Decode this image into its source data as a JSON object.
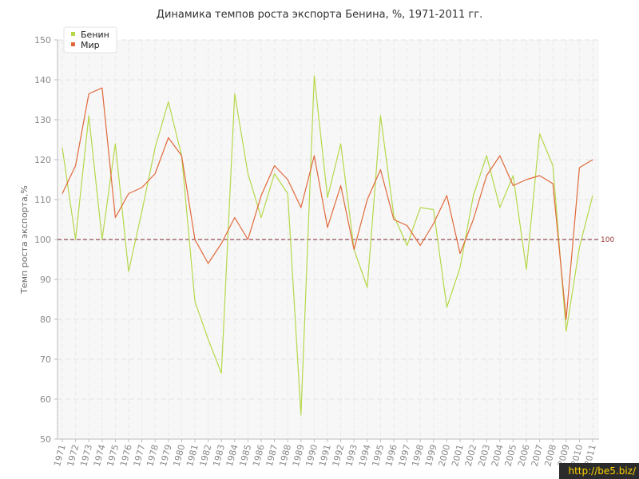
{
  "chart_data": {
    "type": "line",
    "title": "Динамика темпов роста экспорта Бенина, %, 1971-2011 гг.",
    "xlabel": "",
    "ylabel": "Темп роста экспорта,%",
    "ylim": [
      50,
      150
    ],
    "yticks": [
      50,
      60,
      70,
      80,
      90,
      100,
      110,
      120,
      130,
      140,
      150
    ],
    "reference_line": {
      "value": 100,
      "label": "100",
      "color": "#7a1f2b"
    },
    "grid": true,
    "legend_position": "top-left",
    "categories": [
      "1971",
      "1972",
      "1973",
      "1974",
      "1975",
      "1976",
      "1977",
      "1978",
      "1979",
      "1980",
      "1981",
      "1982",
      "1983",
      "1984",
      "1985",
      "1986",
      "1987",
      "1988",
      "1989",
      "1990",
      "1991",
      "1992",
      "1993",
      "1994",
      "1995",
      "1996",
      "1997",
      "1998",
      "1999",
      "2000",
      "2001",
      "2002",
      "2003",
      "2004",
      "2005",
      "2006",
      "2007",
      "2008",
      "2009",
      "2010",
      "2011"
    ],
    "series": [
      {
        "name": "Бенин",
        "color": "#b5d84a",
        "values": [
          123,
          100,
          131,
          100,
          124,
          92,
          107,
          123,
          134.5,
          121,
          84.5,
          75,
          66.5,
          136.5,
          116.5,
          105.5,
          116.5,
          111.5,
          56,
          141,
          110.5,
          124,
          97.5,
          88,
          131,
          106,
          98.5,
          108,
          107.5,
          83,
          93,
          111,
          121,
          108,
          116,
          92.5,
          126.5,
          118.5,
          77,
          98,
          111
        ]
      },
      {
        "name": "Мир",
        "color": "#e0693a",
        "values": [
          111.5,
          118.5,
          136.5,
          138,
          105.5,
          111.5,
          113,
          116.5,
          125.5,
          121,
          100,
          94,
          99,
          105.5,
          100,
          111,
          118.5,
          115,
          108,
          121,
          103,
          113.5,
          97.5,
          110,
          117.5,
          105,
          103.5,
          98.5,
          104,
          111,
          96.5,
          105,
          116,
          121,
          113.5,
          115,
          116,
          114,
          80,
          118,
          120
        ]
      }
    ]
  },
  "watermark": "http://be5.biz/"
}
